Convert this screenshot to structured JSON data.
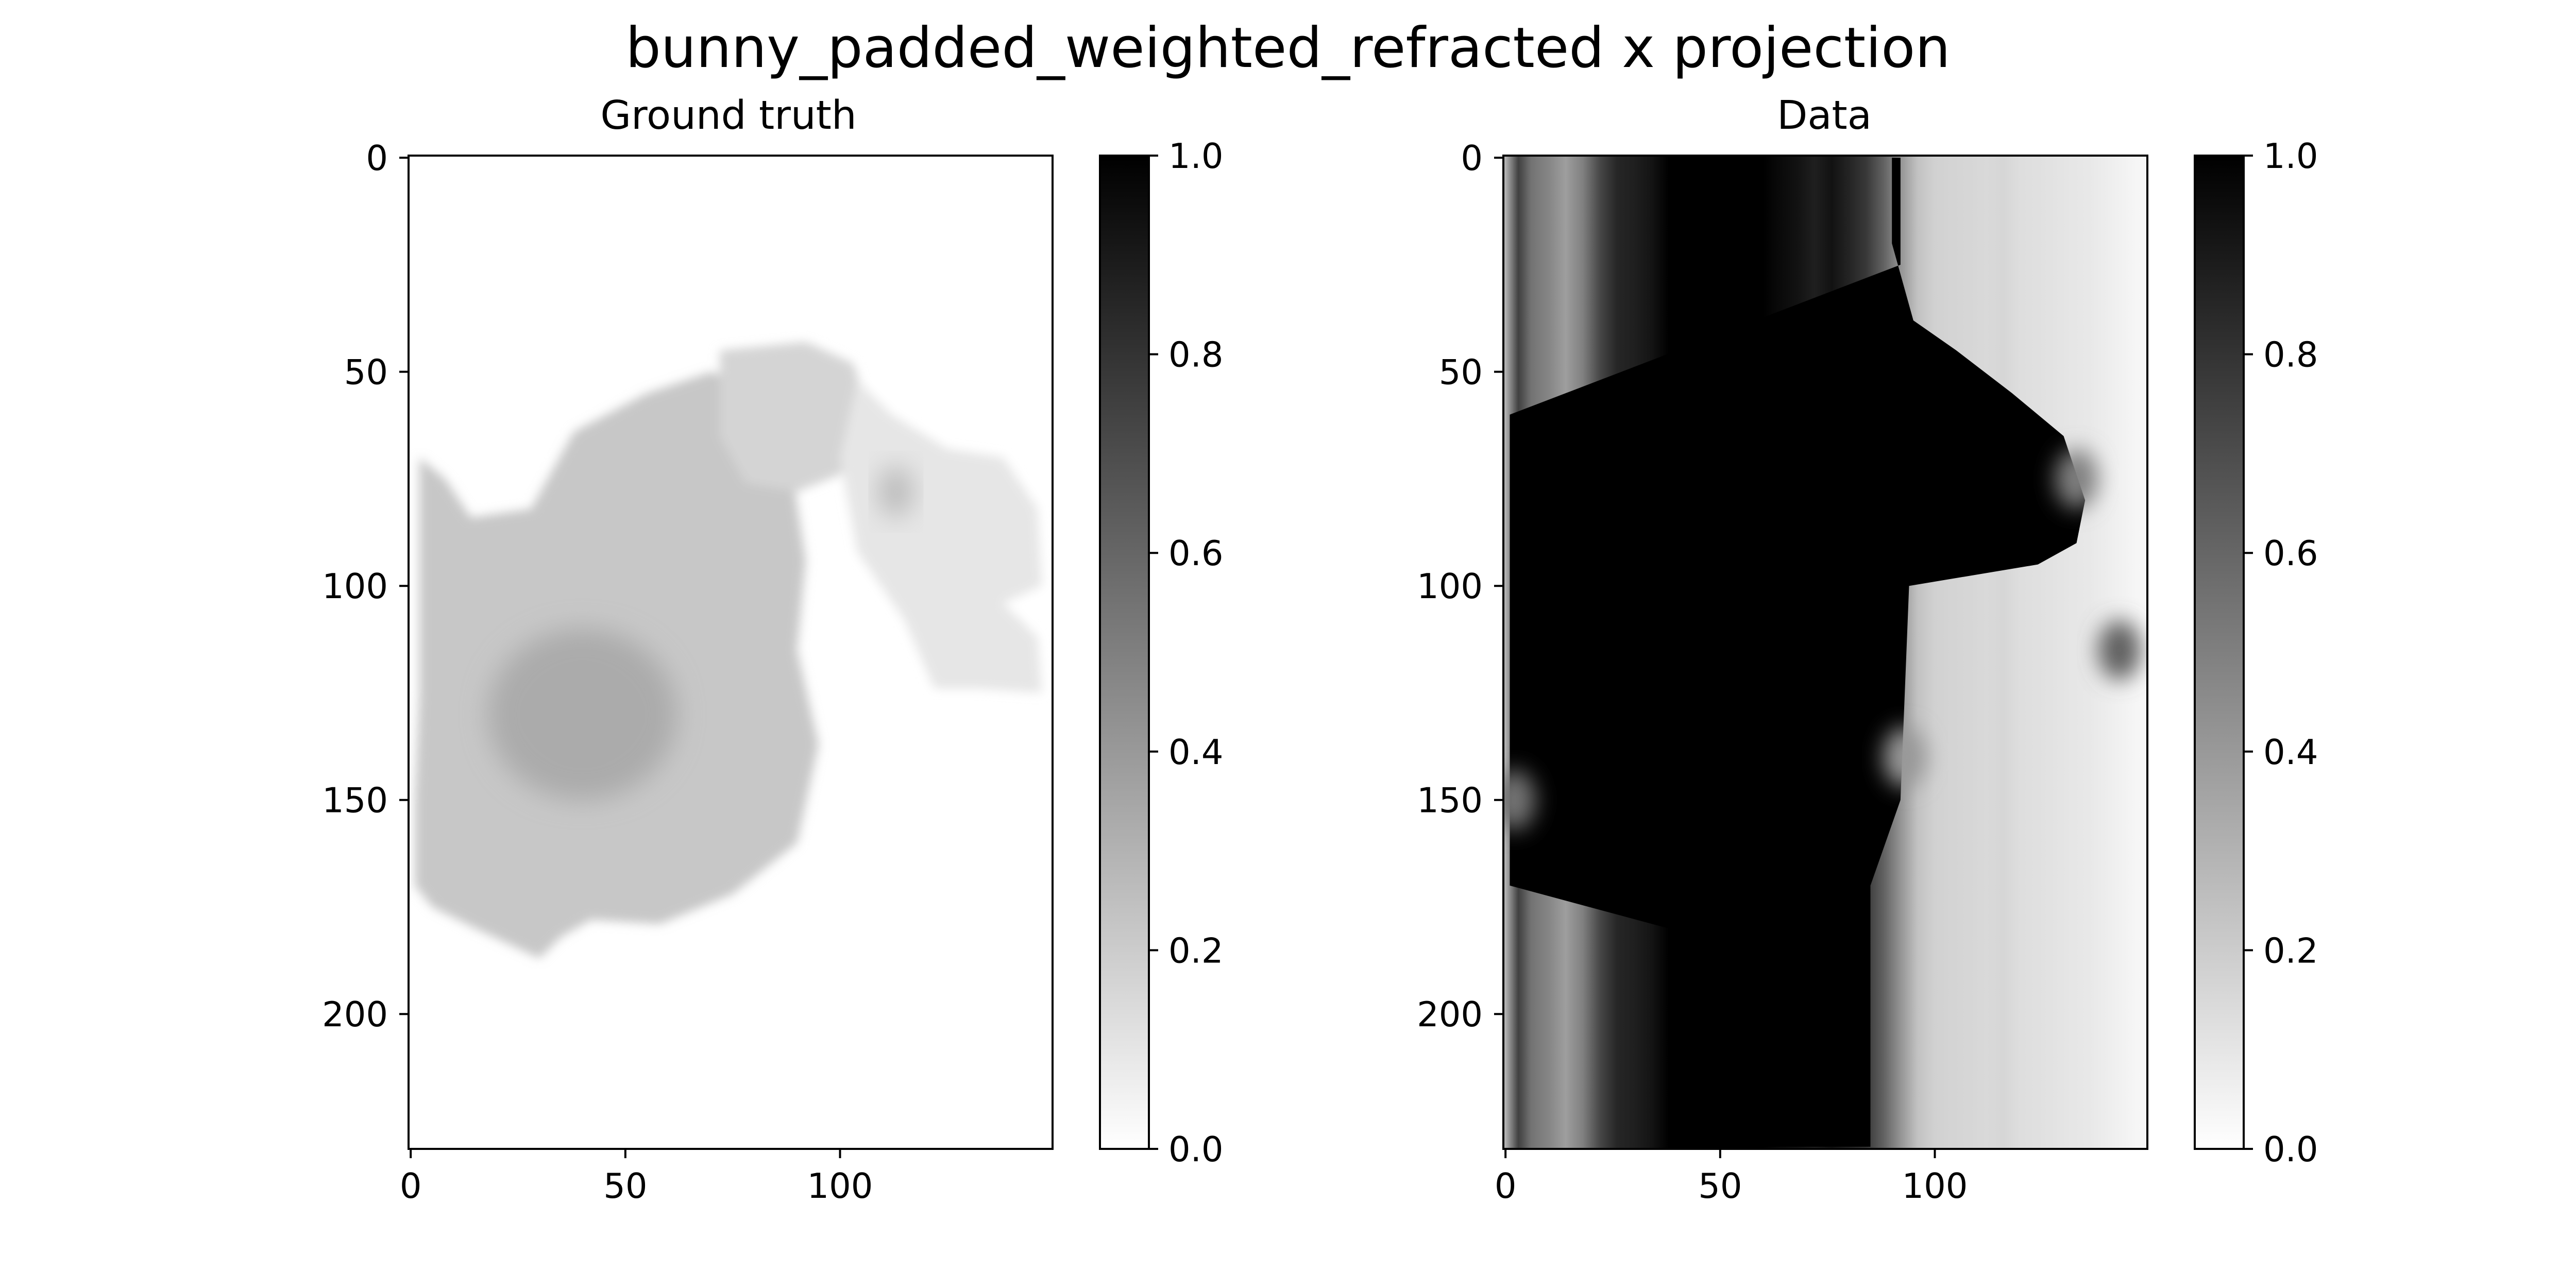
{
  "figure": {
    "title": "bunny_padded_weighted_refracted x projection"
  },
  "chart_data": [
    {
      "type": "heatmap",
      "title": "Ground truth",
      "xlabel": "",
      "ylabel": "",
      "xlim": [
        -0.5,
        149.5
      ],
      "ylim": [
        231.5,
        -0.5
      ],
      "xticks": [
        0,
        50,
        100
      ],
      "yticks": [
        0,
        50,
        100,
        150,
        200
      ],
      "colormap": "gray_r",
      "vmin": 0.0,
      "vmax": 1.0,
      "colorbar_ticks": [
        "0.0",
        "0.2",
        "0.4",
        "0.6",
        "0.8",
        "1.0"
      ],
      "regions": [
        {
          "desc": "bunny body",
          "value": 0.22
        },
        {
          "desc": "body darker core (cx 40, cy 130)",
          "value": 0.33
        },
        {
          "desc": "head (cx 75, cy 60)",
          "value": 0.17
        },
        {
          "desc": "ear (cx 115, cy 80)",
          "value": 0.1
        },
        {
          "desc": "ear shadow (cx 113, cy 78)",
          "value": 0.27
        },
        {
          "desc": "background",
          "value": 0.0
        }
      ]
    },
    {
      "type": "heatmap",
      "title": "Data",
      "xlabel": "",
      "ylabel": "",
      "xlim": [
        -0.5,
        149.5
      ],
      "ylim": [
        231.5,
        -0.5
      ],
      "xticks": [
        0,
        50,
        100
      ],
      "yticks": [
        0,
        50,
        100,
        150,
        200
      ],
      "colormap": "gray_r",
      "vmin": 0.0,
      "vmax": 1.0,
      "colorbar_ticks": [
        "0.0",
        "0.2",
        "0.4",
        "0.6",
        "0.8",
        "1.0"
      ],
      "column_profile": {
        "x": [
          0,
          3,
          6,
          10,
          14,
          18,
          22,
          26,
          30,
          34,
          38,
          60,
          64,
          68,
          72,
          76,
          80,
          84,
          88,
          92,
          96,
          100,
          104,
          108,
          112,
          116,
          120,
          124,
          128,
          132,
          136,
          140,
          144,
          148
        ],
        "values": [
          0.3,
          0.75,
          0.55,
          0.48,
          0.38,
          0.5,
          0.72,
          0.85,
          0.88,
          0.92,
          1.0,
          1.0,
          0.96,
          0.93,
          0.88,
          0.93,
          0.86,
          0.78,
          0.62,
          0.42,
          0.24,
          0.18,
          0.17,
          0.16,
          0.15,
          0.16,
          0.13,
          0.12,
          0.11,
          0.1,
          0.09,
          0.07,
          0.05,
          0.03
        ]
      },
      "saturated_region": {
        "desc": "value 1.0 inside",
        "left_edge": {
          "rows": [
            0,
            25,
            60,
            75,
            110,
            170,
            180,
            231
          ],
          "x": [
            92,
            92,
            1,
            1,
            1,
            1,
            38,
            38
          ]
        },
        "right_edge": {
          "rows": [
            0,
            20,
            38,
            45,
            55,
            65,
            80,
            90,
            95,
            100,
            150,
            170,
            185,
            231
          ],
          "x": [
            90,
            90,
            95,
            105,
            118,
            130,
            135,
            133,
            124,
            94,
            92,
            85,
            85,
            85
          ]
        }
      },
      "dark_spots": [
        {
          "x": 133,
          "y": 75,
          "value": 0.5
        },
        {
          "x": 143,
          "y": 115,
          "value": 0.62
        },
        {
          "x": 93,
          "y": 140,
          "value": 0.4
        },
        {
          "x": 2,
          "y": 150,
          "value": 0.55
        }
      ]
    }
  ]
}
